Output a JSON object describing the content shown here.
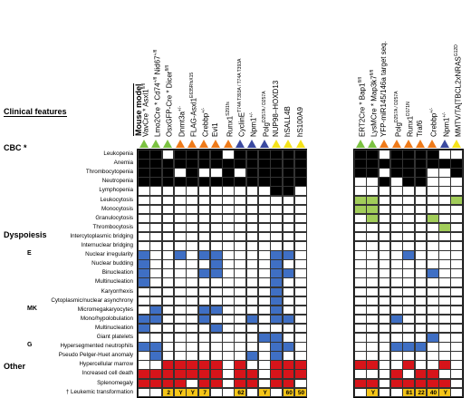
{
  "headers": {
    "mouse_model": "Mouse model",
    "clinical_features": "Clinical features"
  },
  "colors": {
    "black": "#000000",
    "green": "#a2cd5a",
    "blue": "#3f6fc4",
    "red": "#d7141a",
    "yellow": "#f5c518",
    "white": "#ffffff",
    "tri_green": "#7cc242",
    "tri_orange": "#ef7b1a",
    "tri_blue": "#3b4aa0",
    "tri_yellow": "#f5e31a"
  },
  "panel1_models": [
    {
      "text": "VavCre * Asxl1",
      "sup": "fl/fl",
      "tri": "green"
    },
    {
      "text": "Lmo2Cre * Cd74",
      "sup": "+/fl",
      "text2": " Nid67",
      "sup2": "+/fl",
      "tri": "green"
    },
    {
      "text": "OsxGFP-Cre * Dicer",
      "sup": "fl/fl",
      "tri": "green"
    },
    {
      "text": "Dnmt3a",
      "sup": "+/-",
      "tri": "orange"
    },
    {
      "text": "FLAG-Asxl1",
      "sup": "E635RfsX15",
      "tri": "orange"
    },
    {
      "text": "Crebbp",
      "sup": "+/-",
      "tri": "orange"
    },
    {
      "text": "Evi1",
      "sup": "",
      "tri": "orange"
    },
    {
      "text": "Runx1",
      "sup": "S291fs",
      "tri": "orange"
    },
    {
      "text": "CyclinE",
      "sup": "T74A T393A / T74A T393A",
      "tri": "blue"
    },
    {
      "text": "Npm1",
      "sup": "+/-",
      "tri": "blue"
    },
    {
      "text": "Polg",
      "sup": "D257A / D257A",
      "tri": "blue"
    },
    {
      "text": "NUP98–HOXD13",
      "sup": "",
      "tri": "yellow"
    },
    {
      "text": "hSALL4B",
      "sup": "",
      "tri": "yellow"
    },
    {
      "text": "hS100A9",
      "sup": "",
      "tri": "yellow"
    }
  ],
  "panel2_models": [
    {
      "text": "ERT2Cre * Bap1",
      "sup": "fl/fl",
      "tri": "green"
    },
    {
      "text": "LysMCre * Map3k7",
      "sup": "fl/fl",
      "tri": "green"
    },
    {
      "text": "YFP-miR145/146a target seq.",
      "sup": "",
      "tri": "orange"
    },
    {
      "text": "Polg",
      "sup": "D257A / D257A",
      "tri": "orange"
    },
    {
      "text": "Runx1",
      "sup": "D171N",
      "tri": "orange"
    },
    {
      "text": "Traf6",
      "sup": "",
      "tri": "orange"
    },
    {
      "text": "Crebbp",
      "sup": "+/-",
      "tri": "orange"
    },
    {
      "text": "Npm1",
      "sup": "+/-",
      "tri": "blue"
    },
    {
      "text": "MMTV/TA[TBCL2xNRAS",
      "sup": "G12D",
      "tri": "yellow"
    }
  ],
  "rows": [
    {
      "label": "Leukopenia",
      "color": "black",
      "p1": [
        1,
        1,
        0,
        1,
        1,
        1,
        1,
        0,
        1,
        1,
        1,
        1,
        1,
        1
      ],
      "p2": [
        1,
        1,
        0,
        1,
        1,
        1,
        1,
        0,
        0
      ]
    },
    {
      "label": "Anemia",
      "color": "black",
      "p1": [
        1,
        1,
        1,
        1,
        1,
        1,
        1,
        1,
        1,
        1,
        1,
        1,
        1,
        1
      ],
      "p2": [
        1,
        1,
        1,
        1,
        1,
        1,
        1,
        1,
        1
      ]
    },
    {
      "label": "Thrombocytopenia",
      "color": "black",
      "p1": [
        1,
        1,
        1,
        0,
        1,
        0,
        0,
        1,
        0,
        1,
        1,
        1,
        1,
        1
      ],
      "p2": [
        1,
        1,
        0,
        1,
        1,
        1,
        0,
        0,
        1
      ]
    },
    {
      "label": "Neutropenia",
      "color": "black",
      "p1": [
        1,
        1,
        1,
        1,
        1,
        1,
        1,
        1,
        1,
        1,
        1,
        1,
        1,
        1
      ],
      "p2": [
        0,
        0,
        1,
        0,
        1,
        1,
        0,
        0,
        0
      ]
    },
    {
      "label": "Lymphopenia",
      "color": "black",
      "p1": [
        0,
        0,
        0,
        0,
        0,
        0,
        0,
        0,
        0,
        0,
        0,
        1,
        1,
        0
      ],
      "p2": [
        0,
        0,
        0,
        0,
        0,
        0,
        0,
        0,
        0
      ]
    },
    {
      "label": "Leukocytosis",
      "color": "green",
      "p1": [
        0,
        0,
        0,
        0,
        0,
        0,
        0,
        0,
        0,
        0,
        0,
        0,
        0,
        0
      ],
      "p2": [
        1,
        1,
        0,
        0,
        0,
        0,
        0,
        0,
        1
      ]
    },
    {
      "label": "Monocytosis",
      "color": "green",
      "p1": [
        0,
        0,
        0,
        0,
        0,
        0,
        0,
        0,
        0,
        0,
        0,
        0,
        0,
        0
      ],
      "p2": [
        1,
        1,
        0,
        0,
        0,
        0,
        0,
        0,
        0
      ]
    },
    {
      "label": "Granulocytosis",
      "color": "green",
      "p1": [
        0,
        0,
        0,
        0,
        0,
        0,
        0,
        0,
        0,
        0,
        0,
        0,
        0,
        0
      ],
      "p2": [
        0,
        1,
        0,
        0,
        0,
        0,
        1,
        0,
        0
      ]
    },
    {
      "label": "Thrombocytosis",
      "color": "green",
      "p1": [
        0,
        0,
        0,
        0,
        0,
        0,
        0,
        0,
        0,
        0,
        0,
        0,
        0,
        0
      ],
      "p2": [
        0,
        0,
        0,
        0,
        0,
        0,
        0,
        1,
        0
      ]
    },
    {
      "label": "Intercytoplasmic bridging",
      "color": "blue",
      "p1": [
        0,
        0,
        0,
        0,
        0,
        0,
        0,
        0,
        0,
        0,
        0,
        0,
        0,
        0
      ],
      "p2": [
        0,
        0,
        0,
        0,
        0,
        0,
        0,
        0,
        0
      ]
    },
    {
      "label": "Internuclear bridging",
      "color": "blue",
      "p1": [
        0,
        0,
        0,
        0,
        0,
        0,
        0,
        0,
        0,
        0,
        0,
        0,
        0,
        0
      ],
      "p2": [
        0,
        0,
        0,
        0,
        0,
        0,
        0,
        0,
        0
      ]
    },
    {
      "label": "Nuclear irregularity",
      "color": "blue",
      "p1": [
        1,
        0,
        0,
        1,
        0,
        1,
        1,
        0,
        0,
        0,
        0,
        1,
        1,
        0
      ],
      "p2": [
        0,
        0,
        0,
        0,
        1,
        0,
        0,
        0,
        0
      ]
    },
    {
      "label": "Nuclear budding",
      "color": "blue",
      "p1": [
        1,
        0,
        0,
        0,
        0,
        0,
        1,
        0,
        0,
        0,
        0,
        1,
        0,
        0
      ],
      "p2": [
        0,
        0,
        0,
        0,
        0,
        0,
        0,
        0,
        0
      ]
    },
    {
      "label": "Binucleation",
      "color": "blue",
      "p1": [
        1,
        0,
        0,
        0,
        0,
        1,
        1,
        0,
        0,
        0,
        0,
        1,
        1,
        0
      ],
      "p2": [
        0,
        0,
        0,
        0,
        0,
        0,
        1,
        0,
        0
      ]
    },
    {
      "label": "Multinucleation",
      "color": "blue",
      "p1": [
        1,
        0,
        0,
        0,
        0,
        0,
        0,
        0,
        0,
        0,
        0,
        1,
        0,
        0
      ],
      "p2": [
        0,
        0,
        0,
        0,
        0,
        0,
        0,
        0,
        0
      ]
    },
    {
      "label": "Karyorrhexis",
      "color": "blue",
      "p1": [
        0,
        0,
        0,
        0,
        0,
        0,
        0,
        0,
        0,
        0,
        0,
        1,
        0,
        0
      ],
      "p2": [
        0,
        0,
        0,
        0,
        0,
        0,
        0,
        0,
        0
      ]
    },
    {
      "label": "Cytoplasmic/nuclear asynchrony",
      "color": "blue",
      "p1": [
        0,
        0,
        0,
        0,
        0,
        0,
        0,
        0,
        0,
        0,
        0,
        1,
        0,
        0
      ],
      "p2": [
        0,
        0,
        0,
        0,
        0,
        0,
        0,
        0,
        0
      ]
    },
    {
      "label": "Micromegakaryocytes",
      "color": "blue",
      "p1": [
        0,
        1,
        0,
        0,
        0,
        1,
        1,
        0,
        0,
        0,
        0,
        1,
        0,
        0
      ],
      "p2": [
        0,
        0,
        0,
        0,
        0,
        0,
        0,
        0,
        0
      ]
    },
    {
      "label": "Mono/hypolobulation",
      "color": "blue",
      "p1": [
        1,
        1,
        0,
        0,
        0,
        1,
        0,
        0,
        0,
        1,
        0,
        1,
        1,
        0
      ],
      "p2": [
        0,
        0,
        0,
        1,
        0,
        0,
        0,
        0,
        0
      ]
    },
    {
      "label": "Multinucleation",
      "color": "blue",
      "p1": [
        1,
        0,
        0,
        0,
        0,
        0,
        1,
        0,
        0,
        0,
        0,
        0,
        0,
        0
      ],
      "p2": [
        0,
        0,
        0,
        0,
        0,
        0,
        0,
        0,
        0
      ]
    },
    {
      "label": "Giant platelets",
      "color": "blue",
      "p1": [
        0,
        0,
        0,
        0,
        0,
        0,
        0,
        0,
        0,
        0,
        1,
        1,
        0,
        0
      ],
      "p2": [
        0,
        0,
        0,
        0,
        0,
        0,
        1,
        0,
        0
      ]
    },
    {
      "label": "Hypersegmented neutrophils",
      "color": "blue",
      "p1": [
        1,
        1,
        0,
        0,
        0,
        0,
        0,
        0,
        0,
        0,
        0,
        1,
        1,
        0
      ],
      "p2": [
        0,
        0,
        0,
        1,
        1,
        1,
        0,
        0,
        0
      ]
    },
    {
      "label": "Pseudo Pelger-Huet anomaly",
      "color": "blue",
      "p1": [
        0,
        1,
        0,
        0,
        0,
        0,
        0,
        0,
        0,
        1,
        0,
        1,
        0,
        0
      ],
      "p2": [
        0,
        0,
        0,
        0,
        0,
        0,
        0,
        0,
        0
      ]
    },
    {
      "label": "Hypercellular marrow",
      "color": "red",
      "p1": [
        0,
        0,
        1,
        1,
        1,
        1,
        1,
        0,
        1,
        0,
        0,
        1,
        1,
        1
      ],
      "p2": [
        1,
        1,
        0,
        0,
        1,
        0,
        0,
        1,
        0
      ]
    },
    {
      "label": "Increased cell death",
      "color": "red",
      "p1": [
        1,
        1,
        1,
        1,
        1,
        1,
        1,
        0,
        1,
        1,
        0,
        1,
        1,
        1
      ],
      "p2": [
        0,
        0,
        0,
        1,
        0,
        1,
        1,
        0,
        0
      ]
    },
    {
      "label": "Splenomegaly",
      "color": "red",
      "p1": [
        1,
        1,
        1,
        1,
        0,
        1,
        1,
        0,
        1,
        1,
        0,
        1,
        1,
        0
      ],
      "p2": [
        1,
        1,
        0,
        1,
        1,
        1,
        1,
        1,
        0
      ]
    },
    {
      "label": "† Leukemic transformation",
      "color": "yellow",
      "p1": [
        "",
        "",
        "2",
        "Y",
        "Y",
        "7",
        "",
        "",
        "62",
        "",
        "Y",
        "",
        "60",
        "50"
      ],
      "p2": [
        "",
        "Y",
        "",
        "",
        "81",
        "22",
        "40",
        "Y",
        ""
      ]
    }
  ],
  "sections": [
    {
      "label": "CBC *",
      "row": 0
    },
    {
      "label": "Dyspoiesis",
      "row": 9
    },
    {
      "label": "E",
      "row": 11
    },
    {
      "label": "MK",
      "row": 17
    },
    {
      "label": "G",
      "row": 21
    },
    {
      "label": "Other",
      "row": 23
    }
  ]
}
